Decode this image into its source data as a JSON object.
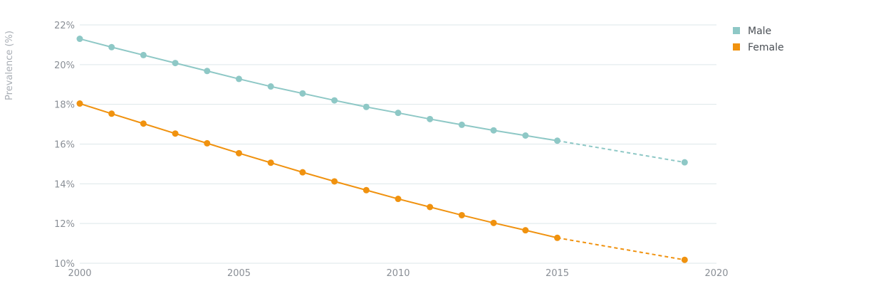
{
  "chart_data": {
    "type": "line",
    "ylabel": "Prevalence (%)",
    "xlim": [
      2000,
      2020
    ],
    "ylim": [
      10,
      22
    ],
    "x_ticks": [
      2000,
      2005,
      2010,
      2015,
      2020
    ],
    "y_ticks": [
      10,
      12,
      14,
      16,
      18,
      20,
      22
    ],
    "y_tick_labels": [
      "10%",
      "12%",
      "14%",
      "16%",
      "18%",
      "20%",
      "22%"
    ],
    "grid": "horizontal",
    "legend_position": "top-right",
    "series": [
      {
        "name": "Male",
        "color": "#8ec8c6",
        "x": [
          2000,
          2001,
          2002,
          2003,
          2004,
          2005,
          2006,
          2007,
          2008,
          2009,
          2010,
          2011,
          2012,
          2013,
          2014,
          2015
        ],
        "values": [
          21.3,
          20.88,
          20.48,
          20.08,
          19.68,
          19.28,
          18.9,
          18.55,
          18.2,
          17.87,
          17.57,
          17.26,
          16.97,
          16.69,
          16.43,
          16.17
        ],
        "projection": {
          "x": [
            2015,
            2019
          ],
          "values": [
            16.17,
            15.08
          ]
        }
      },
      {
        "name": "Female",
        "color": "#f0920f",
        "x": [
          2000,
          2001,
          2002,
          2003,
          2004,
          2005,
          2006,
          2007,
          2008,
          2009,
          2010,
          2011,
          2012,
          2013,
          2014,
          2015
        ],
        "values": [
          18.04,
          17.53,
          17.03,
          16.53,
          16.04,
          15.54,
          15.06,
          14.58,
          14.12,
          13.68,
          13.24,
          12.83,
          12.42,
          12.03,
          11.66,
          11.28
        ],
        "projection": {
          "x": [
            2015,
            2019
          ],
          "values": [
            11.28,
            10.17
          ]
        }
      }
    ]
  }
}
